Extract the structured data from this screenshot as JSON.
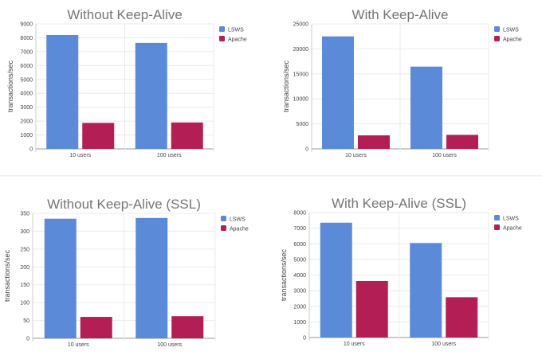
{
  "chart_data": [
    {
      "type": "bar",
      "title": "Without Keep-Alive",
      "ylabel": "transactions/sec",
      "ylim": [
        0,
        9000
      ],
      "yticks": [
        0,
        1000,
        2000,
        3000,
        4000,
        5000,
        6000,
        7000,
        8000,
        9000
      ],
      "categories": [
        "10 users",
        "100 users"
      ],
      "series": [
        {
          "name": "LSWS",
          "values": [
            8200,
            7630
          ]
        },
        {
          "name": "Apache",
          "values": [
            1870,
            1900
          ]
        }
      ],
      "legend": "right",
      "grid": true
    },
    {
      "type": "bar",
      "title": "With Keep-Alive",
      "ylabel": "transactions/sec",
      "ylim": [
        0,
        25000
      ],
      "yticks": [
        0,
        5000,
        10000,
        15000,
        20000,
        25000
      ],
      "categories": [
        "10 users",
        "100 users"
      ],
      "series": [
        {
          "name": "LSWS",
          "values": [
            22500,
            16450
          ]
        },
        {
          "name": "Apache",
          "values": [
            2700,
            2800
          ]
        }
      ],
      "legend": "right",
      "grid": true
    },
    {
      "type": "bar",
      "title": "Without Keep-Alive (SSL)",
      "ylabel": "transactions/sec",
      "ylim": [
        0,
        350
      ],
      "yticks": [
        0,
        50,
        100,
        150,
        200,
        250,
        300,
        350
      ],
      "categories": [
        "10 users",
        "100 users"
      ],
      "series": [
        {
          "name": "LSWS",
          "values": [
            335,
            337
          ]
        },
        {
          "name": "Apache",
          "values": [
            60,
            62
          ]
        }
      ],
      "legend": "right",
      "grid": true
    },
    {
      "type": "bar",
      "title": "With Keep-Alive (SSL)",
      "ylabel": "transactions/sec",
      "ylim": [
        0,
        8000
      ],
      "yticks": [
        0,
        1000,
        2000,
        3000,
        4000,
        5000,
        6000,
        7000,
        8000
      ],
      "categories": [
        "10 users",
        "100 users"
      ],
      "series": [
        {
          "name": "LSWS",
          "values": [
            7350,
            6050
          ]
        },
        {
          "name": "Apache",
          "values": [
            3620,
            2580
          ]
        }
      ],
      "legend": "right",
      "grid": true
    }
  ],
  "colors": {
    "LSWS": "#5b8ad8",
    "Apache": "#b31f55"
  }
}
